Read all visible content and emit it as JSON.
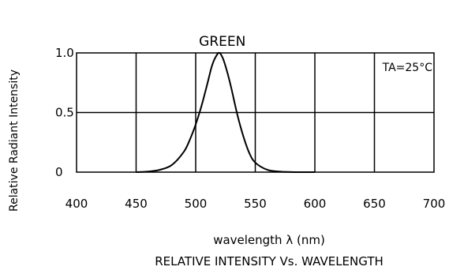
{
  "chart_data": {
    "type": "line",
    "title": "GREEN",
    "annotation": "TA=25°C",
    "xlabel": "wavelength λ  (nm)",
    "ylabel": "Relative  Radiant  Intensity",
    "caption": "RELATIVE  INTENSITY  Vs.  WAVELENGTH",
    "xlim": [
      400,
      700
    ],
    "ylim": [
      0,
      1.0
    ],
    "x_ticks": [
      400,
      450,
      500,
      550,
      600,
      650,
      700
    ],
    "y_ticks": [
      0,
      0.5,
      1.0
    ],
    "x_tick_labels": [
      "400",
      "450",
      "500",
      "550",
      "600",
      "650",
      "700"
    ],
    "y_tick_labels": [
      "0",
      "0.5",
      "1.0"
    ],
    "grid": true,
    "series": [
      {
        "x": [
          450,
          460,
          470,
          480,
          490,
          495,
          500,
          505,
          510,
          513,
          515,
          517,
          519,
          520,
          521,
          523,
          525,
          527,
          530,
          535,
          540,
          545,
          550,
          560,
          570,
          580,
          590,
          600
        ],
        "y": [
          0,
          0.005,
          0.02,
          0.06,
          0.17,
          0.27,
          0.4,
          0.56,
          0.75,
          0.87,
          0.93,
          0.97,
          1.0,
          1.0,
          0.99,
          0.95,
          0.89,
          0.82,
          0.7,
          0.48,
          0.3,
          0.16,
          0.08,
          0.02,
          0.005,
          0.001,
          0,
          0
        ]
      }
    ],
    "color": "#000000"
  }
}
